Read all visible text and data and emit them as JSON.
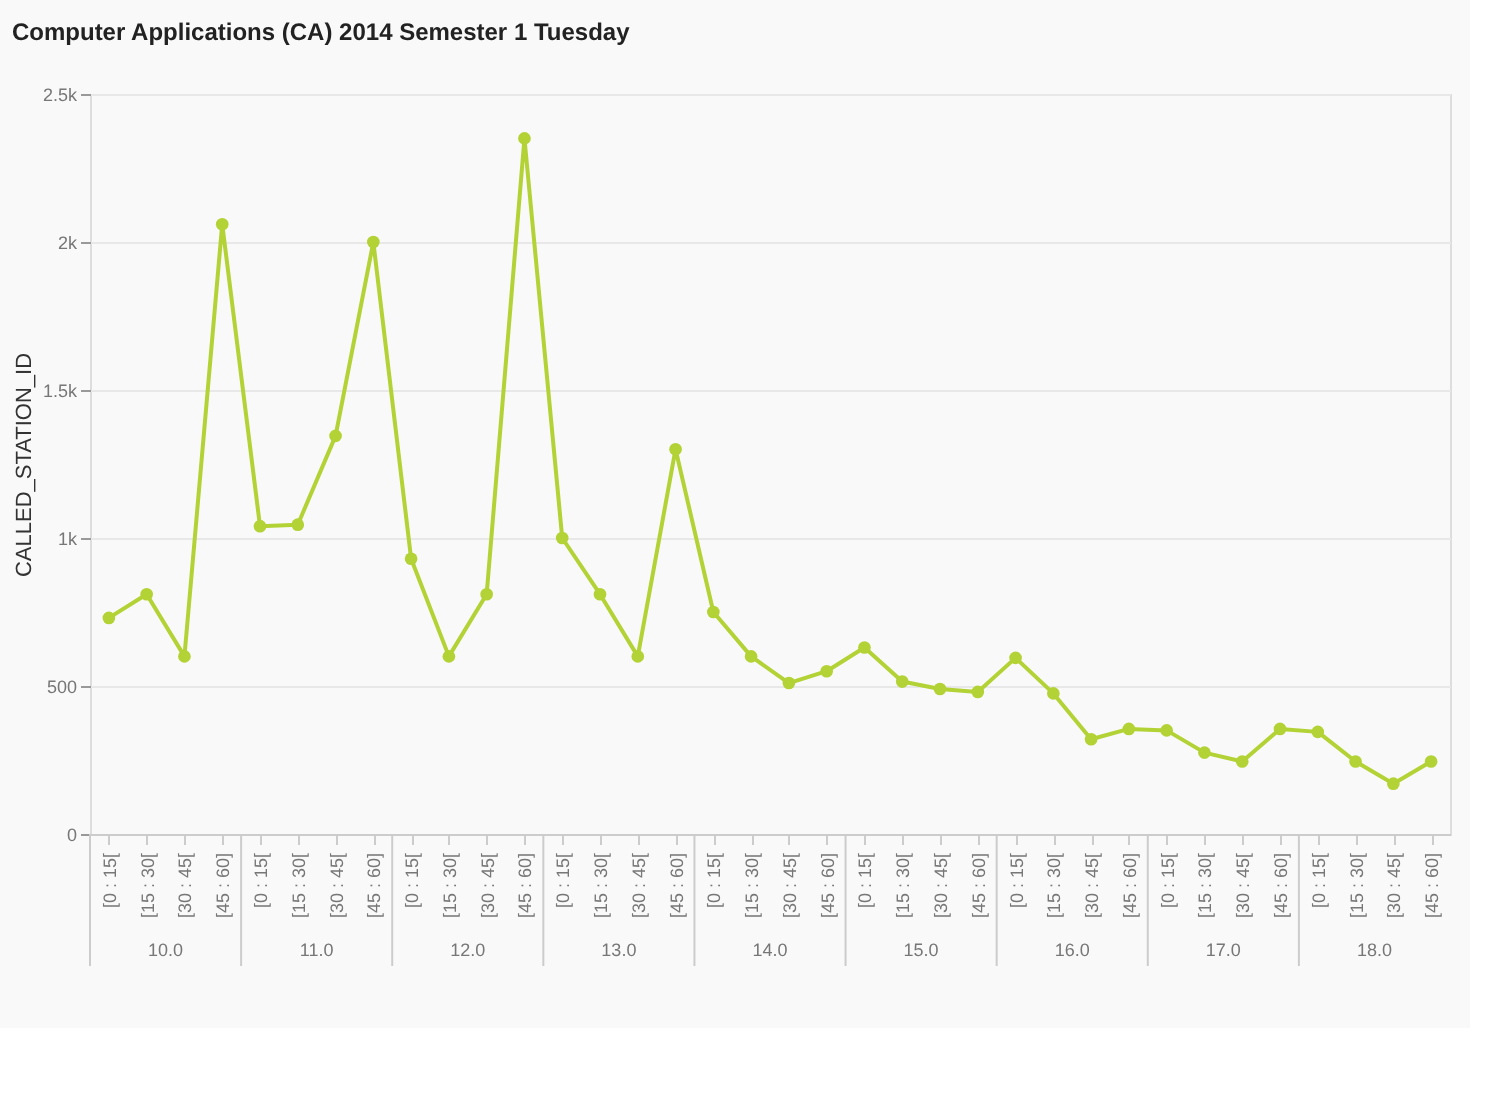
{
  "chart_data": {
    "type": "line",
    "title": "Computer Applications (CA) 2014 Semester 1 Tuesday",
    "ylabel": "CALLED_STATION_ID",
    "categories": [
      "[0 : 15[",
      "[15 : 30[",
      "[30 : 45[",
      "[45 : 60]",
      "[0 : 15[",
      "[15 : 30[",
      "[30 : 45[",
      "[45 : 60]",
      "[0 : 15[",
      "[15 : 30[",
      "[30 : 45[",
      "[45 : 60]",
      "[0 : 15[",
      "[15 : 30[",
      "[30 : 45[",
      "[45 : 60]",
      "[0 : 15[",
      "[15 : 30[",
      "[30 : 45[",
      "[45 : 60]",
      "[0 : 15[",
      "[15 : 30[",
      "[30 : 45[",
      "[45 : 60]",
      "[0 : 15[",
      "[15 : 30[",
      "[30 : 45[",
      "[45 : 60]",
      "[0 : 15[",
      "[15 : 30[",
      "[30 : 45[",
      "[45 : 60]",
      "[0 : 15[",
      "[15 : 30[",
      "[30 : 45[",
      "[45 : 60]"
    ],
    "series": [
      {
        "color": "#b3d235",
        "values": [
          730,
          810,
          600,
          2060,
          1040,
          1045,
          1345,
          2000,
          930,
          600,
          810,
          2350,
          1000,
          810,
          600,
          1300,
          750,
          600,
          510,
          550,
          630,
          515,
          490,
          480,
          595,
          475,
          320,
          355,
          350,
          275,
          245,
          355,
          345,
          245,
          170,
          245
        ]
      }
    ],
    "annotations": [
      "10.0",
      "11.0",
      "12.0",
      "13.0",
      "14.0",
      "15.0",
      "16.0",
      "17.0",
      "18.0"
    ],
    "ylim": [
      0,
      2500
    ],
    "yticks": [
      0,
      500,
      {
        "value": 1000,
        "label": "1k"
      },
      {
        "value": 1500,
        "label": "1.5k"
      },
      {
        "value": 2000,
        "label": "2k"
      },
      {
        "value": 2500,
        "label": "2.5k"
      }
    ],
    "grid": "y",
    "marker": "circle",
    "line_style": "solid"
  }
}
